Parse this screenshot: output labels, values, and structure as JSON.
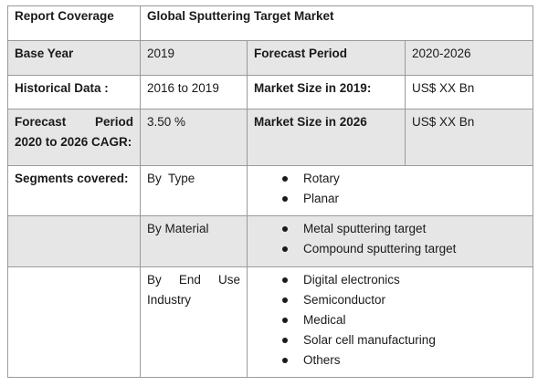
{
  "table": {
    "header": {
      "label": "Report Coverage",
      "value": "Global Sputtering Target Market"
    },
    "base_year": {
      "label": "Base Year",
      "value": "2019",
      "forecast_label": "Forecast Period",
      "forecast_value": "2020-2026"
    },
    "historical": {
      "label": "Historical Data :",
      "value": "2016 to 2019",
      "size_label": "Market Size in 2019:",
      "size_value": "US$ XX Bn"
    },
    "cagr": {
      "label_line1_a": "Forecast",
      "label_line1_b": "Period",
      "label_line2": "2020 to 2026 CAGR:",
      "value": "3.50 %",
      "size_label": "Market Size in 2026",
      "size_value": "US$ XX Bn"
    },
    "segments": {
      "label": "Segments covered:",
      "groups": [
        {
          "name": "By  Type",
          "items": [
            "Rotary",
            "Planar"
          ]
        },
        {
          "name": "By Material",
          "items": [
            "Metal sputtering target",
            "Compound sputtering target"
          ]
        },
        {
          "name_line1_a": "By",
          "name_line1_b": "End",
          "name_line1_c": "Use",
          "name_line2": "Industry",
          "items": [
            "Digital electronics",
            "Semiconductor",
            "Medical",
            "Solar cell manufacturing",
            "Others"
          ]
        }
      ]
    }
  }
}
